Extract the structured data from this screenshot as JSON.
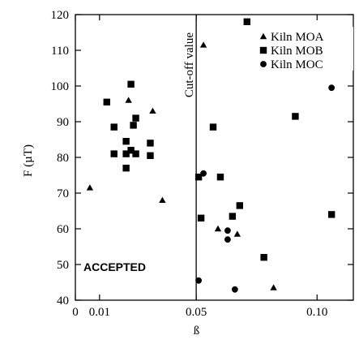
{
  "chart_data": {
    "type": "scatter",
    "title": "",
    "xlabel": "ß",
    "ylabel": "F (µT)",
    "xlim": [
      0,
      0.115
    ],
    "ylim": [
      40,
      120
    ],
    "x_ticks": [
      {
        "value": 0,
        "label": "0"
      },
      {
        "value": 0.01,
        "label": "0.01"
      },
      {
        "value": 0.05,
        "label": "0.05"
      },
      {
        "value": 0.1,
        "label": "0.10"
      }
    ],
    "y_ticks": [
      {
        "value": 40,
        "label": "40"
      },
      {
        "value": 50,
        "label": "50"
      },
      {
        "value": 60,
        "label": "60"
      },
      {
        "value": 70,
        "label": "70"
      },
      {
        "value": 80,
        "label": "80"
      },
      {
        "value": 90,
        "label": "90"
      },
      {
        "value": 100,
        "label": "100"
      },
      {
        "value": 110,
        "label": "110"
      },
      {
        "value": 120,
        "label": "120"
      }
    ],
    "grid": false,
    "legend_position": "top-right",
    "cutoff": {
      "x": 0.05,
      "label": "Cut-off value"
    },
    "region_label": "ACCEPTED",
    "series": [
      {
        "name": "Kiln MOA",
        "marker": "triangle",
        "points": [
          [
            0.006,
            71.5
          ],
          [
            0.022,
            96
          ],
          [
            0.032,
            93
          ],
          [
            0.036,
            68
          ],
          [
            0.053,
            111.5
          ],
          [
            0.059,
            60
          ],
          [
            0.067,
            58.5
          ],
          [
            0.082,
            43.5
          ],
          [
            0.106,
            64
          ]
        ]
      },
      {
        "name": "Kiln MOB",
        "marker": "square",
        "points": [
          [
            0.013,
            95.5
          ],
          [
            0.016,
            88.5
          ],
          [
            0.016,
            81
          ],
          [
            0.021,
            77
          ],
          [
            0.021,
            81
          ],
          [
            0.021,
            84.5
          ],
          [
            0.023,
            100.5
          ],
          [
            0.023,
            82
          ],
          [
            0.024,
            89
          ],
          [
            0.025,
            91
          ],
          [
            0.025,
            81
          ],
          [
            0.031,
            84
          ],
          [
            0.031,
            80.5
          ],
          [
            0.051,
            74.5
          ],
          [
            0.052,
            63
          ],
          [
            0.057,
            88.5
          ],
          [
            0.06,
            74.5
          ],
          [
            0.065,
            63.5
          ],
          [
            0.068,
            66.5
          ],
          [
            0.071,
            118
          ],
          [
            0.078,
            52
          ],
          [
            0.091,
            91.5
          ],
          [
            0.106,
            64
          ]
        ]
      },
      {
        "name": "Kiln MOC",
        "marker": "circle",
        "points": [
          [
            0.051,
            45.5
          ],
          [
            0.053,
            75.5
          ],
          [
            0.063,
            59.5
          ],
          [
            0.063,
            57
          ],
          [
            0.066,
            43
          ],
          [
            0.106,
            99.5
          ]
        ]
      }
    ]
  }
}
